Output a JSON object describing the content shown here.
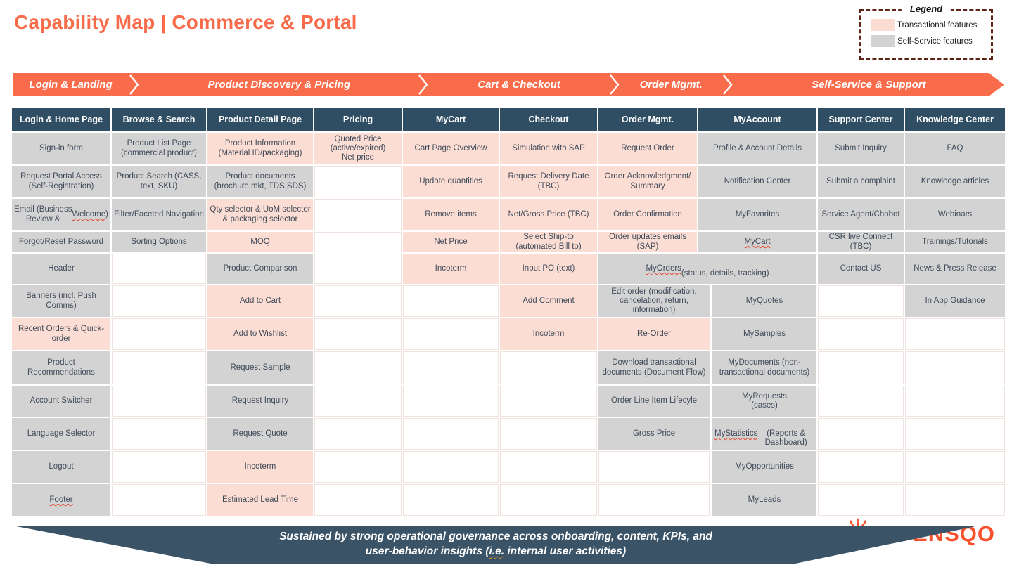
{
  "title": "Capability Map | Commerce & Portal",
  "legend": {
    "title": "Legend",
    "items": [
      {
        "label": "Transactional features",
        "color": "#FCDDD3"
      },
      {
        "label": "Self-Service features",
        "color": "#D3D3D3"
      }
    ]
  },
  "phases": [
    {
      "label": "Login & Landing",
      "weight": 165
    },
    {
      "label": "Product Discovery & Pricing",
      "weight": 395
    },
    {
      "label": "Cart & Checkout",
      "weight": 255
    },
    {
      "label": "Order Mgmt.",
      "weight": 145
    },
    {
      "label": "Self-Service & Support",
      "weight": 385
    }
  ],
  "capability_table": {
    "columns": [
      {
        "header": "Login & Home Page",
        "cells": [
          {
            "text": "Sign-in form",
            "type": "self-service"
          },
          {
            "text": "Request Portal Access (Self-Registration)",
            "type": "self-service"
          },
          {
            "text": "Email (Business Review & Welcome)",
            "type": "self-service",
            "wavy": "Welcome"
          },
          {
            "text": "Forgot/Reset Password",
            "type": "self-service"
          },
          {
            "text": "Header",
            "type": "self-service"
          },
          {
            "text": "Banners (incl. Push Comms)",
            "type": "self-service"
          },
          {
            "text": "Recent Orders & Quick-order",
            "type": "transactional"
          },
          {
            "text": "Product Recommendations",
            "type": "self-service"
          },
          {
            "text": "Account Switcher",
            "type": "self-service"
          },
          {
            "text": "Language Selector",
            "type": "self-service"
          },
          {
            "text": "Logout",
            "type": "self-service"
          },
          {
            "text": "Footer",
            "type": "self-service",
            "wavy": "Footer"
          }
        ]
      },
      {
        "header": "Browse & Search",
        "cells": [
          {
            "text": "Product List Page (commercial product)",
            "type": "self-service"
          },
          {
            "text": "Product Search (CASS, text, SKU)",
            "type": "self-service"
          },
          {
            "text": "Filter/Faceted Navigation",
            "type": "self-service"
          },
          {
            "text": "Sorting Options",
            "type": "self-service"
          },
          null,
          null,
          null,
          null,
          null,
          null,
          null,
          null
        ]
      },
      {
        "header": "Product Detail Page",
        "cells": [
          {
            "text": "Product Information (Material ID/packaging)",
            "type": "transactional"
          },
          {
            "text": "Product documents (brochure,mkt, TDS,SDS)",
            "type": "self-service"
          },
          {
            "text": "Qty selector & UoM selector & packaging selector",
            "type": "transactional"
          },
          {
            "text": "MOQ",
            "type": "transactional"
          },
          {
            "text": "Product Comparison",
            "type": "self-service"
          },
          {
            "text": "Add to Cart",
            "type": "transactional"
          },
          {
            "text": "Add to Wishlist",
            "type": "transactional"
          },
          {
            "text": "Request Sample",
            "type": "self-service"
          },
          {
            "text": "Request Inquiry",
            "type": "self-service"
          },
          {
            "text": "Request Quote",
            "type": "self-service"
          },
          {
            "text": "Incoterm",
            "type": "transactional"
          },
          {
            "text": "Estimated Lead Time",
            "type": "transactional"
          }
        ]
      },
      {
        "header": "Pricing",
        "cells": [
          {
            "text": "Quoted Price\n(active/expired)\nNet price",
            "type": "transactional"
          },
          null,
          null,
          null,
          null,
          null,
          null,
          null,
          null,
          null,
          null,
          null
        ]
      },
      {
        "header": "MyCart",
        "cells": [
          {
            "text": "Cart Page Overview",
            "type": "transactional"
          },
          {
            "text": "Update quantities",
            "type": "transactional"
          },
          {
            "text": "Remove items",
            "type": "transactional"
          },
          {
            "text": "Net Price",
            "type": "transactional"
          },
          {
            "text": "Incoterm",
            "type": "transactional"
          },
          null,
          null,
          null,
          null,
          null,
          null,
          null
        ]
      },
      {
        "header": "Checkout",
        "cells": [
          {
            "text": "Simulation with SAP",
            "type": "transactional"
          },
          {
            "text": "Request Delivery Date (TBC)",
            "type": "transactional"
          },
          {
            "text": "Net/Gross Price (TBC)",
            "type": "transactional"
          },
          {
            "text": "Select Ship-to (automated Bill to)",
            "type": "transactional"
          },
          {
            "text": "Input PO (text)",
            "type": "transactional"
          },
          {
            "text": "Add Comment",
            "type": "transactional"
          },
          {
            "text": "Incoterm",
            "type": "transactional"
          },
          null,
          null,
          null,
          null,
          null
        ]
      },
      {
        "header": "Order Mgmt.",
        "cells": [
          {
            "text": "Request Order",
            "type": "transactional"
          },
          {
            "text": "Order Acknowledgment/ Summary",
            "type": "transactional"
          },
          {
            "text": "Order Confirmation",
            "type": "transactional"
          },
          {
            "text": "Order updates emails (SAP)",
            "type": "transactional"
          },
          {
            "text": "MyOrders\n(status, details, tracking)",
            "type": "self-service",
            "span": 2,
            "wavy": "MyOrders"
          },
          {
            "text": "Edit order (modification, cancelation, return, information)",
            "type": "self-service"
          },
          {
            "text": "Re-Order",
            "type": "transactional"
          },
          {
            "text": "Download transactional documents (Document Flow)",
            "type": "self-service"
          },
          {
            "text": "Order Line Item Lifecyle",
            "type": "self-service"
          },
          {
            "text": "Gross Price",
            "type": "self-service"
          },
          null,
          null
        ]
      },
      {
        "header": "MyAccount",
        "cells": [
          {
            "text": "Profile & Account Details",
            "type": "self-service"
          },
          {
            "text": "Notification Center",
            "type": "self-service"
          },
          {
            "text": "MyFavorites",
            "type": "self-service"
          },
          {
            "text": "MyCart",
            "type": "self-service",
            "wavy": "MyCart"
          },
          {
            "skip": true
          },
          {
            "text": "MyQuotes",
            "type": "self-service"
          },
          {
            "text": "MySamples",
            "type": "self-service"
          },
          {
            "text": "MyDocuments (non-transactional documents)",
            "type": "self-service"
          },
          {
            "text": "MyRequests\n(cases)",
            "type": "self-service"
          },
          {
            "text": "MyStatistics\n(Reports & Dashboard)",
            "type": "self-service",
            "wavy": "MyStatistics"
          },
          {
            "text": "MyOpportunities",
            "type": "self-service"
          },
          {
            "text": "MyLeads",
            "type": "self-service"
          }
        ]
      },
      {
        "header": "Support Center",
        "cells": [
          {
            "text": "Submit Inquiry",
            "type": "self-service"
          },
          {
            "text": "Submit a complaint",
            "type": "self-service"
          },
          {
            "text": "Service Agent/Chabot",
            "type": "self-service"
          },
          {
            "text": "CSR live Connect (TBC)",
            "type": "self-service"
          },
          {
            "text": "Contact US",
            "type": "self-service"
          },
          null,
          null,
          null,
          null,
          null,
          null,
          null
        ]
      },
      {
        "header": "Knowledge Center",
        "cells": [
          {
            "text": "FAQ",
            "type": "self-service"
          },
          {
            "text": "Knowledge articles",
            "type": "self-service"
          },
          {
            "text": "Webinars",
            "type": "self-service"
          },
          {
            "text": "Trainings/Tutorials",
            "type": "self-service"
          },
          {
            "text": "News & Press Release",
            "type": "self-service"
          },
          {
            "text": "In App Guidance",
            "type": "self-service"
          },
          null,
          null,
          null,
          null,
          null,
          null
        ]
      }
    ]
  },
  "footer": {
    "text": "Sustained by strong operational governance across onboarding, content, KPIs, and\nuser-behavior insights (i.e. internal user activities)",
    "wavy": "i.e."
  },
  "logo": {
    "wordmark": "SYENSQO"
  },
  "colors": {
    "accent_orange": "#F96C4B",
    "header_dark": "#2F4E63",
    "footer_dark": "#3A5366",
    "transactional": "#FCDDD3",
    "self_service": "#D3D3D3",
    "legend_border": "#5E2317",
    "logo_orange": "#F8512E"
  }
}
